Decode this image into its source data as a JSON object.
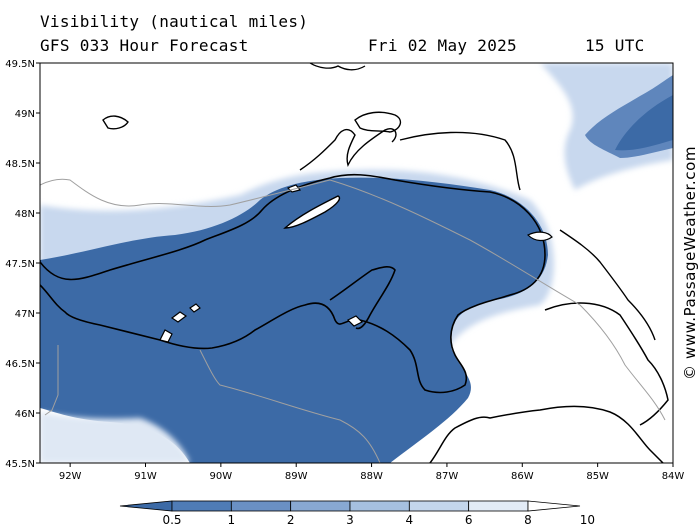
{
  "header": {
    "title": "Visibility (nautical miles)",
    "model": "GFS 033 Hour Forecast",
    "date": "Fri 02 May 2025",
    "time": "15 UTC"
  },
  "map": {
    "lat_labels": [
      "49.5N",
      "49N",
      "48.5N",
      "48N",
      "47.5N",
      "47N",
      "46.5N",
      "46N",
      "45.5N"
    ],
    "lon_labels": [
      "92W",
      "91W",
      "90W",
      "89W",
      "88W",
      "87W",
      "86W",
      "85W",
      "84W"
    ],
    "lat_range": [
      45.5,
      49.5
    ],
    "lon_range": [
      -92.4,
      -84.0
    ],
    "land_color": "#ffffff",
    "coast_color": "#000000",
    "border_color": "#a0a0a0"
  },
  "colorbar": {
    "levels": [
      "0.5",
      "1",
      "2",
      "3",
      "4",
      "6",
      "8",
      "10"
    ],
    "colors": [
      "#3c6aa6",
      "#4f7cb6",
      "#6a90c4",
      "#88a8d2",
      "#a6c0e0",
      "#c4d6ec",
      "#e2ebf6",
      "#ffffff"
    ]
  },
  "credit": "© www.PassageWeather.com"
}
